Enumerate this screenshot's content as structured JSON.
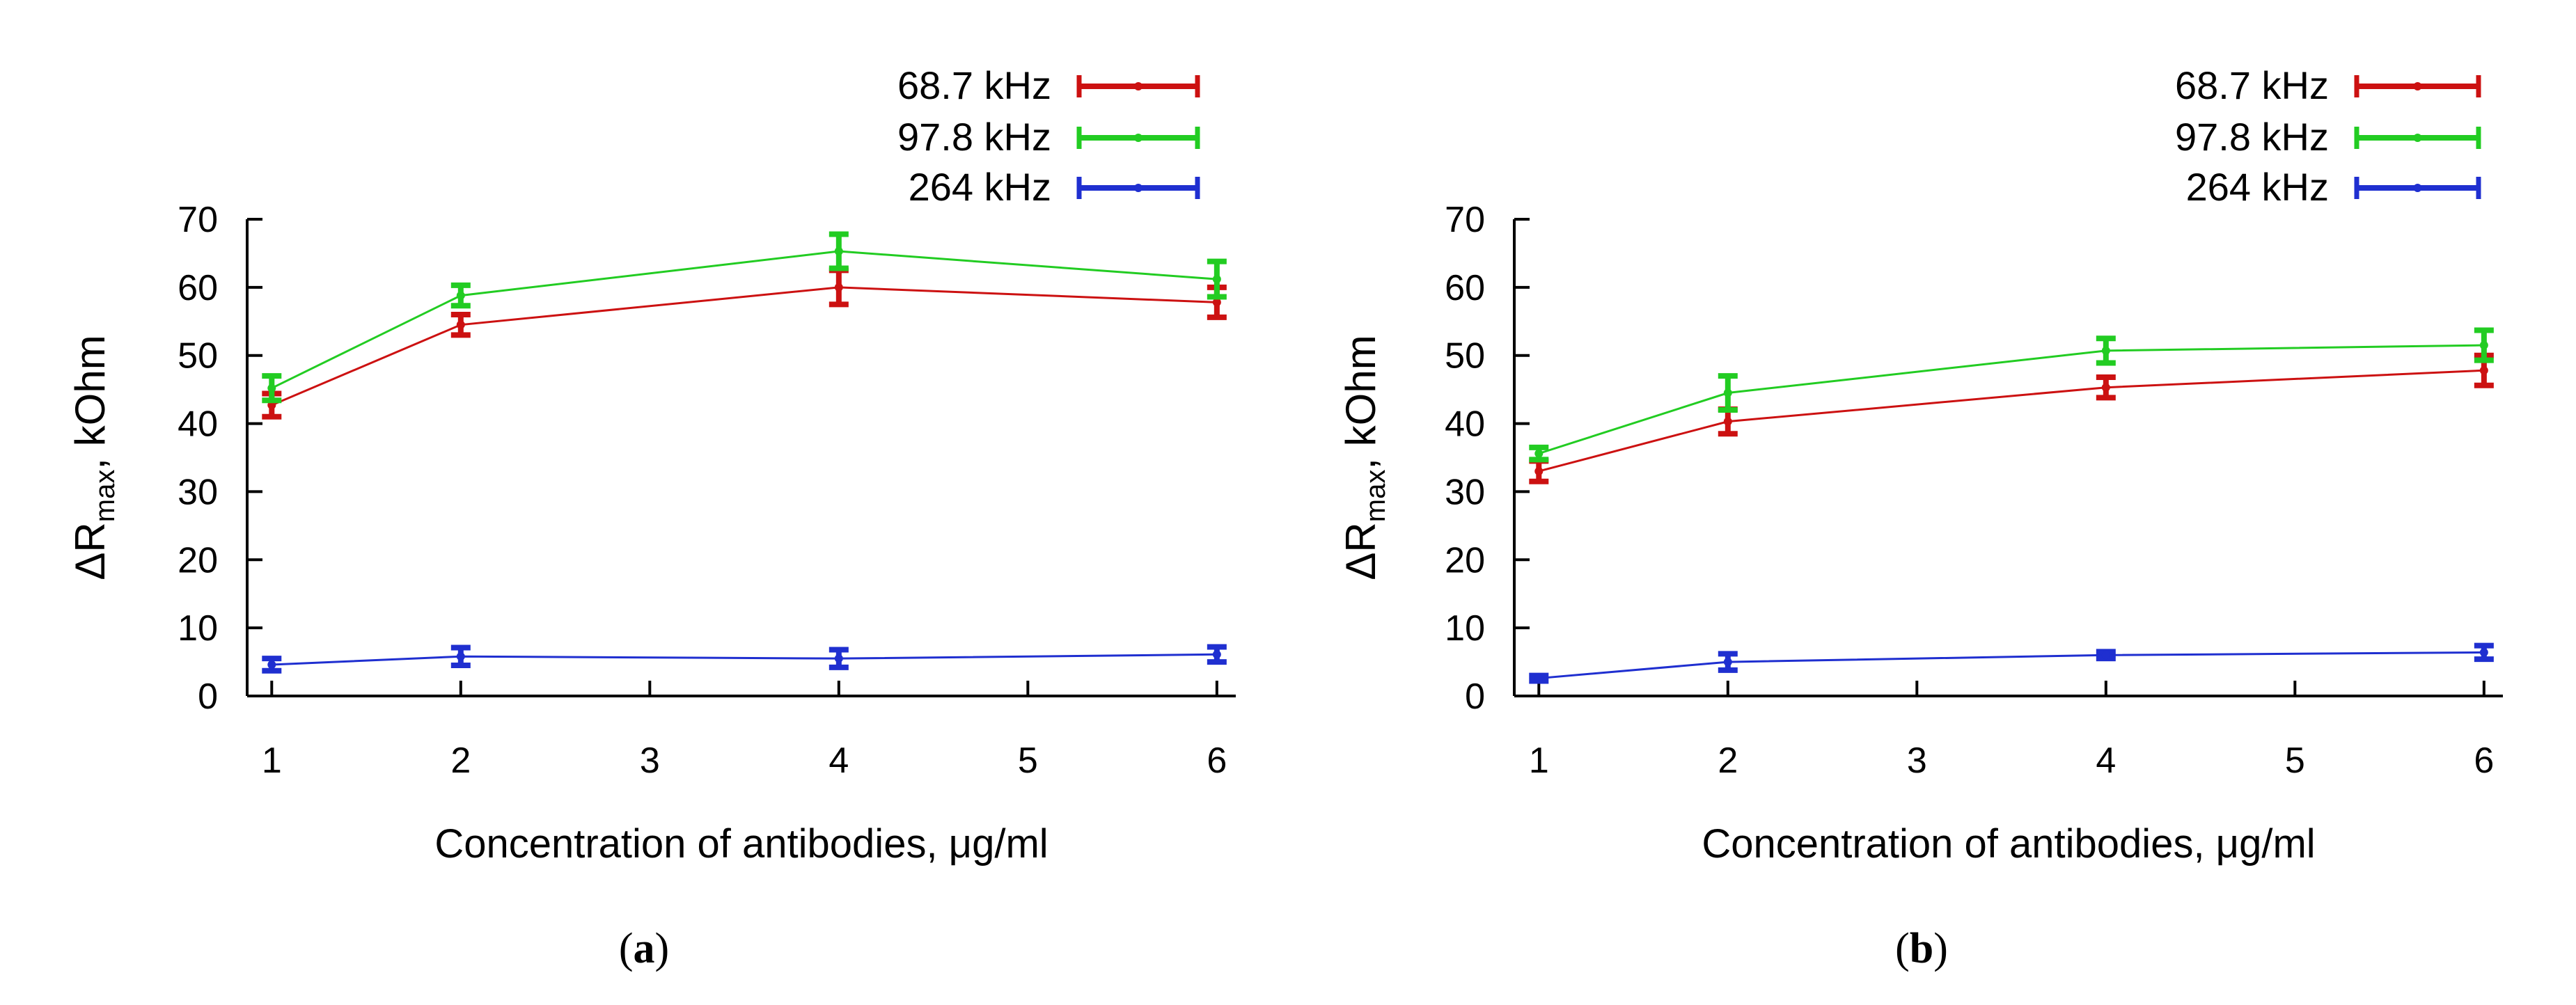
{
  "chart_data": [
    {
      "type": "line",
      "panel_label": "a",
      "xlabel": "Concentration of antibodies, μg/ml",
      "ylabel_main": "ΔR",
      "ylabel_sub": "max",
      "ylabel_tail": ", kOhm",
      "x_ticks": [
        1,
        2,
        3,
        4,
        5,
        6
      ],
      "y_ticks": [
        0,
        10,
        20,
        30,
        40,
        50,
        60,
        70
      ],
      "xlim": [
        0.87,
        6.1
      ],
      "ylim": [
        0,
        70
      ],
      "legend_position": "top-right",
      "series": [
        {
          "name": "68.7 kHz",
          "color": "#cc1111",
          "x": [
            1,
            2,
            4,
            6
          ],
          "y": [
            42.7,
            54.5,
            60.0,
            57.8
          ],
          "err": [
            1.7,
            1.5,
            2.5,
            2.2
          ]
        },
        {
          "name": "97.8 kHz",
          "color": "#22cc22",
          "x": [
            1,
            2,
            4,
            6
          ],
          "y": [
            45.2,
            58.8,
            65.3,
            61.2
          ],
          "err": [
            1.8,
            1.5,
            2.5,
            2.6
          ]
        },
        {
          "name": "264 kHz",
          "color": "#1f2fd0",
          "x": [
            1,
            2,
            4,
            6
          ],
          "y": [
            4.6,
            5.8,
            5.5,
            6.1
          ],
          "err": [
            0.9,
            1.3,
            1.3,
            1.1
          ]
        }
      ]
    },
    {
      "type": "line",
      "panel_label": "b",
      "xlabel": "Concentration of antibodies, μg/ml",
      "ylabel_main": "ΔR",
      "ylabel_sub": "max",
      "ylabel_tail": ", kOhm",
      "x_ticks": [
        1,
        2,
        3,
        4,
        5,
        6
      ],
      "y_ticks": [
        0,
        10,
        20,
        30,
        40,
        50,
        60,
        70
      ],
      "xlim": [
        0.87,
        6.1
      ],
      "ylim": [
        0,
        70
      ],
      "legend_position": "top-right",
      "series": [
        {
          "name": "68.7 kHz",
          "color": "#cc1111",
          "x": [
            1,
            2,
            4,
            6
          ],
          "y": [
            33.0,
            40.3,
            45.3,
            47.8
          ],
          "err": [
            1.5,
            1.8,
            1.5,
            2.2
          ]
        },
        {
          "name": "97.8 kHz",
          "color": "#22cc22",
          "x": [
            1,
            2,
            4,
            6
          ],
          "y": [
            35.6,
            44.5,
            50.7,
            51.5
          ],
          "err": [
            0.9,
            2.5,
            1.8,
            2.2
          ]
        },
        {
          "name": "264 kHz",
          "color": "#1f2fd0",
          "x": [
            1,
            2,
            4,
            6
          ],
          "y": [
            2.6,
            5.0,
            6.0,
            6.4
          ],
          "err": [
            0.4,
            1.2,
            0.5,
            1.0
          ]
        }
      ]
    }
  ]
}
